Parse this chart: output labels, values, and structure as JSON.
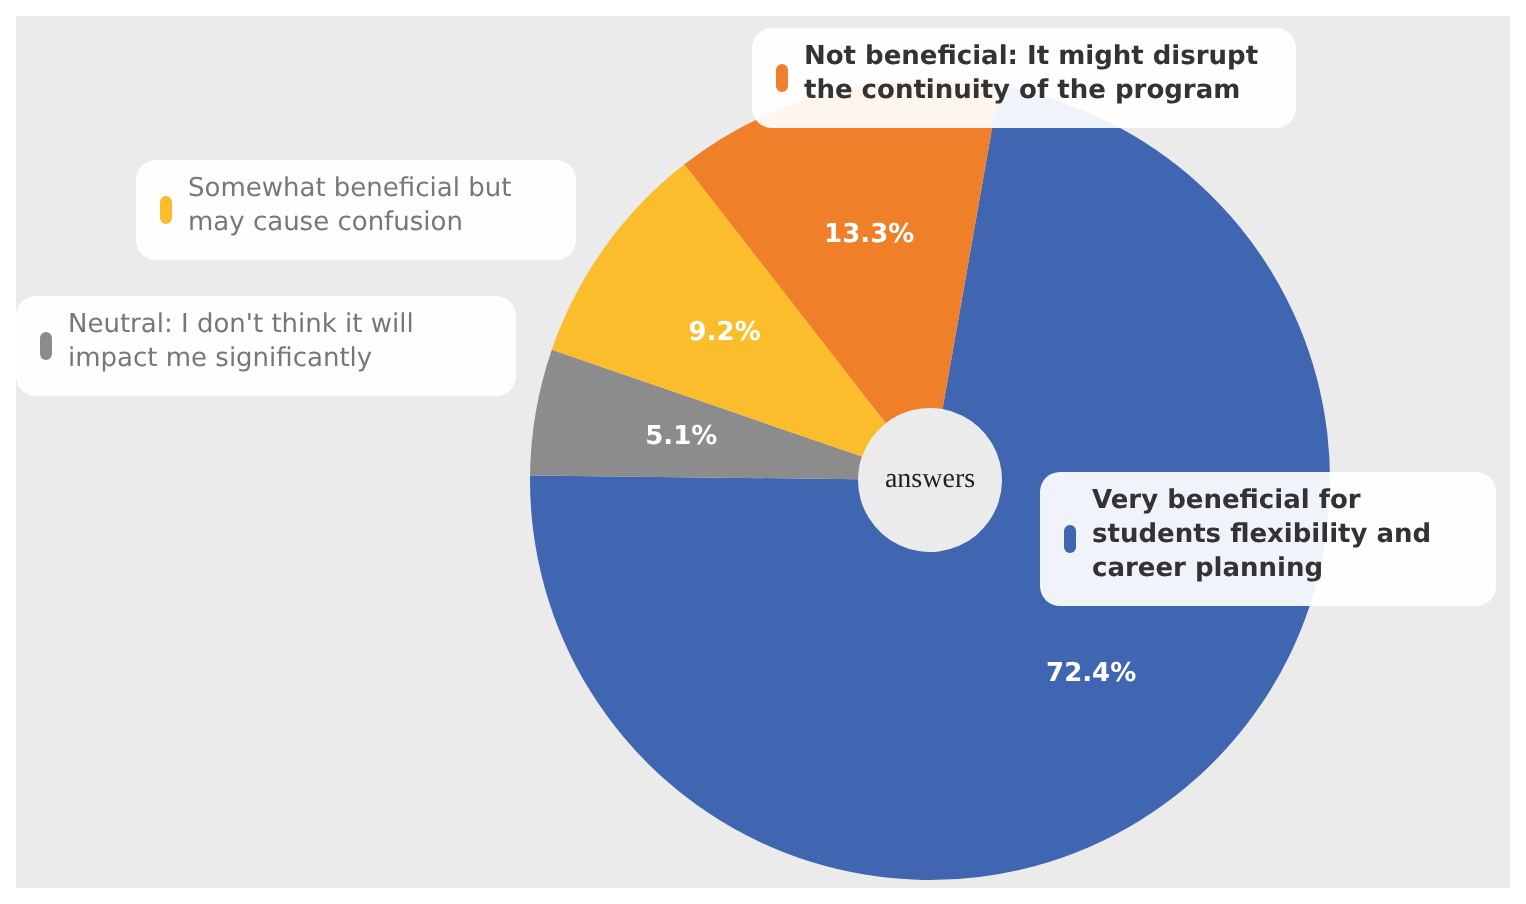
{
  "chart_data": {
    "type": "donut",
    "categories": [
      "Very beneficial for students flexibility and career planning",
      "Neutral: I don't think it will impact me significantly",
      "Somewhat beneficial but may cause confusion",
      "Not beneficial: It might disrupt the continuity of the program"
    ],
    "values": [
      72.4,
      5.1,
      9.2,
      13.3
    ],
    "colors": [
      "#4066b2",
      "#8c8c8c",
      "#fbbd2c",
      "#f07f2a"
    ],
    "value_labels": [
      "72.4%",
      "5.1%",
      "9.2%",
      "13.3%"
    ],
    "annotations": [
      "answers"
    ],
    "legend": "top"
  }
}
